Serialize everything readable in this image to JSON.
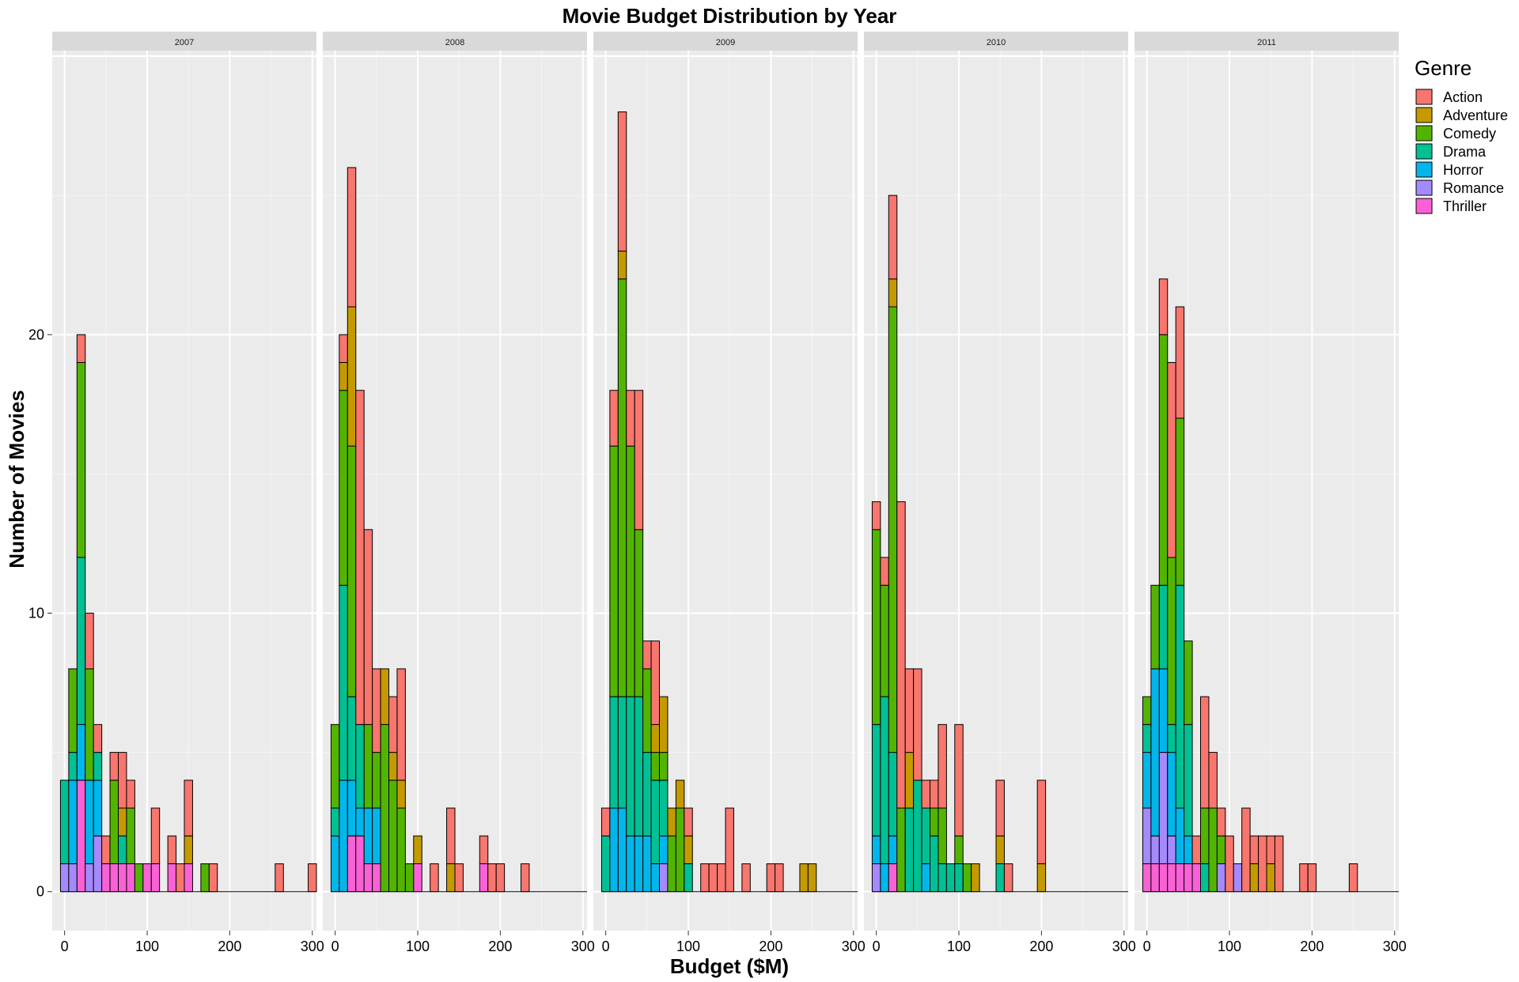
{
  "chart_data": {
    "type": "bar",
    "chart_subtype": "stacked-histogram-faceted",
    "title": "Movie Budget Distribution by Year",
    "xlabel": "Budget ($M)",
    "ylabel": "Number of Movies",
    "x_ticks": [
      0,
      100,
      200,
      300
    ],
    "y_ticks": [
      0,
      10,
      20
    ],
    "xlim": [
      -15,
      305
    ],
    "ylim": [
      -1.4,
      30.2
    ],
    "bin_width": 10,
    "grid": true,
    "legend": {
      "title": "Genre",
      "position": "right",
      "entries": [
        "Action",
        "Adventure",
        "Comedy",
        "Drama",
        "Horror",
        "Romance",
        "Thriller"
      ]
    },
    "series": [
      {
        "name": "Action",
        "color": "#F8766D"
      },
      {
        "name": "Adventure",
        "color": "#C49A00"
      },
      {
        "name": "Comedy",
        "color": "#53B400"
      },
      {
        "name": "Drama",
        "color": "#00C094"
      },
      {
        "name": "Horror",
        "color": "#00B6EB"
      },
      {
        "name": "Romance",
        "color": "#A58AFF"
      },
      {
        "name": "Thriller",
        "color": "#FB61D7"
      }
    ],
    "bar_stack_order_bottom_to_top": [
      "Thriller",
      "Romance",
      "Horror",
      "Drama",
      "Comedy",
      "Adventure",
      "Action"
    ],
    "facets": [
      {
        "label": "2007",
        "bins": [
          {
            "x": 0,
            "counts": {
              "Romance": 1,
              "Drama": 3
            }
          },
          {
            "x": 10,
            "counts": {
              "Romance": 1,
              "Horror": 3,
              "Drama": 1,
              "Comedy": 3
            }
          },
          {
            "x": 20,
            "counts": {
              "Thriller": 4,
              "Horror": 2,
              "Drama": 6,
              "Comedy": 7,
              "Action": 1
            }
          },
          {
            "x": 30,
            "counts": {
              "Romance": 1,
              "Horror": 3,
              "Comedy": 4,
              "Action": 2
            }
          },
          {
            "x": 40,
            "counts": {
              "Romance": 2,
              "Horror": 2,
              "Drama": 1,
              "Action": 1
            }
          },
          {
            "x": 50,
            "counts": {
              "Thriller": 1,
              "Action": 1
            }
          },
          {
            "x": 60,
            "counts": {
              "Thriller": 1,
              "Comedy": 3,
              "Action": 1
            }
          },
          {
            "x": 70,
            "counts": {
              "Thriller": 1,
              "Drama": 1,
              "Adventure": 1,
              "Action": 2
            }
          },
          {
            "x": 80,
            "counts": {
              "Thriller": 1,
              "Comedy": 2,
              "Action": 1
            }
          },
          {
            "x": 90,
            "counts": {
              "Comedy": 1
            }
          },
          {
            "x": 100,
            "counts": {
              "Thriller": 1
            }
          },
          {
            "x": 110,
            "counts": {
              "Thriller": 1,
              "Action": 2
            }
          },
          {
            "x": 130,
            "counts": {
              "Thriller": 1,
              "Action": 1
            }
          },
          {
            "x": 140,
            "counts": {
              "Action": 1
            }
          },
          {
            "x": 150,
            "counts": {
              "Thriller": 1,
              "Adventure": 1,
              "Action": 2
            }
          },
          {
            "x": 170,
            "counts": {
              "Comedy": 1
            }
          },
          {
            "x": 180,
            "counts": {
              "Action": 1
            }
          },
          {
            "x": 260,
            "counts": {
              "Action": 1
            }
          },
          {
            "x": 300,
            "counts": {
              "Action": 1
            }
          }
        ]
      },
      {
        "label": "2008",
        "bins": [
          {
            "x": 0,
            "counts": {
              "Horror": 2,
              "Drama": 1,
              "Comedy": 3
            }
          },
          {
            "x": 10,
            "counts": {
              "Horror": 4,
              "Drama": 7,
              "Comedy": 7,
              "Adventure": 1,
              "Action": 1
            }
          },
          {
            "x": 20,
            "counts": {
              "Thriller": 2,
              "Horror": 2,
              "Drama": 3,
              "Comedy": 9,
              "Adventure": 5,
              "Action": 5
            }
          },
          {
            "x": 30,
            "counts": {
              "Thriller": 2,
              "Horror": 1,
              "Drama": 3,
              "Action": 12
            }
          },
          {
            "x": 40,
            "counts": {
              "Thriller": 1,
              "Horror": 2,
              "Comedy": 3,
              "Action": 7
            }
          },
          {
            "x": 50,
            "counts": {
              "Thriller": 1,
              "Horror": 2,
              "Comedy": 2,
              "Action": 3
            }
          },
          {
            "x": 60,
            "counts": {
              "Comedy": 6,
              "Adventure": 2
            }
          },
          {
            "x": 70,
            "counts": {
              "Comedy": 4,
              "Adventure": 1,
              "Action": 2
            }
          },
          {
            "x": 80,
            "counts": {
              "Comedy": 3,
              "Adventure": 1,
              "Action": 4
            }
          },
          {
            "x": 90,
            "counts": {
              "Comedy": 1
            }
          },
          {
            "x": 100,
            "counts": {
              "Thriller": 1,
              "Adventure": 1
            }
          },
          {
            "x": 120,
            "counts": {
              "Action": 1
            }
          },
          {
            "x": 140,
            "counts": {
              "Adventure": 1,
              "Action": 2
            }
          },
          {
            "x": 150,
            "counts": {
              "Action": 1
            }
          },
          {
            "x": 180,
            "counts": {
              "Thriller": 1,
              "Action": 1
            }
          },
          {
            "x": 190,
            "counts": {
              "Action": 1
            }
          },
          {
            "x": 200,
            "counts": {
              "Action": 1
            }
          },
          {
            "x": 230,
            "counts": {
              "Action": 1
            }
          }
        ]
      },
      {
        "label": "2009",
        "bins": [
          {
            "x": 0,
            "counts": {
              "Drama": 2,
              "Action": 1
            }
          },
          {
            "x": 10,
            "counts": {
              "Horror": 3,
              "Drama": 4,
              "Comedy": 9,
              "Action": 2
            }
          },
          {
            "x": 20,
            "counts": {
              "Horror": 3,
              "Drama": 4,
              "Comedy": 15,
              "Adventure": 1,
              "Action": 5
            }
          },
          {
            "x": 30,
            "counts": {
              "Horror": 2,
              "Drama": 5,
              "Comedy": 9,
              "Action": 2
            }
          },
          {
            "x": 40,
            "counts": {
              "Horror": 2,
              "Drama": 5,
              "Comedy": 6,
              "Action": 5
            }
          },
          {
            "x": 50,
            "counts": {
              "Horror": 2,
              "Drama": 3,
              "Comedy": 3,
              "Action": 1
            }
          },
          {
            "x": 60,
            "counts": {
              "Horror": 1,
              "Drama": 3,
              "Comedy": 1,
              "Adventure": 1,
              "Action": 3
            }
          },
          {
            "x": 70,
            "counts": {
              "Romance": 1,
              "Horror": 1,
              "Drama": 2,
              "Comedy": 1,
              "Adventure": 2
            }
          },
          {
            "x": 80,
            "counts": {
              "Comedy": 2,
              "Adventure": 1
            }
          },
          {
            "x": 90,
            "counts": {
              "Comedy": 3,
              "Adventure": 1
            }
          },
          {
            "x": 100,
            "counts": {
              "Drama": 1,
              "Adventure": 1,
              "Action": 1
            }
          },
          {
            "x": 120,
            "counts": {
              "Action": 1
            }
          },
          {
            "x": 130,
            "counts": {
              "Action": 1
            }
          },
          {
            "x": 140,
            "counts": {
              "Action": 1
            }
          },
          {
            "x": 150,
            "counts": {
              "Action": 3
            }
          },
          {
            "x": 170,
            "counts": {
              "Action": 1
            }
          },
          {
            "x": 200,
            "counts": {
              "Action": 1
            }
          },
          {
            "x": 210,
            "counts": {
              "Action": 1
            }
          },
          {
            "x": 240,
            "counts": {
              "Adventure": 1
            }
          },
          {
            "x": 250,
            "counts": {
              "Adventure": 1
            }
          }
        ]
      },
      {
        "label": "2010",
        "bins": [
          {
            "x": 0,
            "counts": {
              "Romance": 1,
              "Horror": 1,
              "Drama": 4,
              "Comedy": 7,
              "Action": 1
            }
          },
          {
            "x": 10,
            "counts": {
              "Horror": 1,
              "Drama": 6,
              "Comedy": 4,
              "Action": 1
            }
          },
          {
            "x": 20,
            "counts": {
              "Thriller": 1,
              "Horror": 1,
              "Drama": 3,
              "Comedy": 16,
              "Adventure": 1,
              "Action": 3
            }
          },
          {
            "x": 30,
            "counts": {
              "Comedy": 3,
              "Action": 11
            }
          },
          {
            "x": 40,
            "counts": {
              "Drama": 3,
              "Adventure": 2,
              "Action": 3
            }
          },
          {
            "x": 50,
            "counts": {
              "Drama": 4,
              "Action": 4
            }
          },
          {
            "x": 60,
            "counts": {
              "Horror": 1,
              "Drama": 2,
              "Action": 1
            }
          },
          {
            "x": 70,
            "counts": {
              "Drama": 2,
              "Comedy": 1,
              "Action": 1
            }
          },
          {
            "x": 80,
            "counts": {
              "Drama": 1,
              "Comedy": 2,
              "Action": 3
            }
          },
          {
            "x": 90,
            "counts": {
              "Drama": 1
            }
          },
          {
            "x": 100,
            "counts": {
              "Drama": 1,
              "Comedy": 1,
              "Action": 4
            }
          },
          {
            "x": 110,
            "counts": {
              "Comedy": 1
            }
          },
          {
            "x": 120,
            "counts": {
              "Adventure": 1
            }
          },
          {
            "x": 150,
            "counts": {
              "Drama": 1,
              "Adventure": 1,
              "Action": 2
            }
          },
          {
            "x": 160,
            "counts": {
              "Action": 1
            }
          },
          {
            "x": 200,
            "counts": {
              "Adventure": 1,
              "Action": 3
            }
          }
        ]
      },
      {
        "label": "2011",
        "bins": [
          {
            "x": 0,
            "counts": {
              "Thriller": 1,
              "Romance": 2,
              "Horror": 2,
              "Drama": 1,
              "Comedy": 1
            }
          },
          {
            "x": 10,
            "counts": {
              "Thriller": 1,
              "Romance": 1,
              "Horror": 6,
              "Comedy": 3
            }
          },
          {
            "x": 20,
            "counts": {
              "Thriller": 1,
              "Romance": 4,
              "Horror": 3,
              "Drama": 3,
              "Comedy": 9,
              "Action": 2
            }
          },
          {
            "x": 30,
            "counts": {
              "Thriller": 1,
              "Romance": 1,
              "Horror": 3,
              "Drama": 1,
              "Comedy": 6,
              "Action": 7
            }
          },
          {
            "x": 40,
            "counts": {
              "Thriller": 1,
              "Horror": 2,
              "Drama": 8,
              "Comedy": 6,
              "Action": 4
            }
          },
          {
            "x": 50,
            "counts": {
              "Thriller": 1,
              "Horror": 1,
              "Drama": 4,
              "Comedy": 3
            }
          },
          {
            "x": 60,
            "counts": {
              "Thriller": 1,
              "Action": 1
            }
          },
          {
            "x": 70,
            "counts": {
              "Drama": 1,
              "Comedy": 2,
              "Action": 4
            }
          },
          {
            "x": 80,
            "counts": {
              "Comedy": 3,
              "Action": 2
            }
          },
          {
            "x": 90,
            "counts": {
              "Romance": 1,
              "Comedy": 1,
              "Action": 1
            }
          },
          {
            "x": 100,
            "counts": {
              "Action": 2
            }
          },
          {
            "x": 110,
            "counts": {
              "Romance": 1
            }
          },
          {
            "x": 120,
            "counts": {
              "Action": 3
            }
          },
          {
            "x": 130,
            "counts": {
              "Adventure": 1,
              "Action": 1
            }
          },
          {
            "x": 140,
            "counts": {
              "Action": 2
            }
          },
          {
            "x": 150,
            "counts": {
              "Adventure": 1,
              "Action": 1
            }
          },
          {
            "x": 160,
            "counts": {
              "Action": 2
            }
          },
          {
            "x": 190,
            "counts": {
              "Action": 1
            }
          },
          {
            "x": 200,
            "counts": {
              "Action": 1
            }
          },
          {
            "x": 250,
            "counts": {
              "Action": 1
            }
          }
        ]
      }
    ]
  }
}
